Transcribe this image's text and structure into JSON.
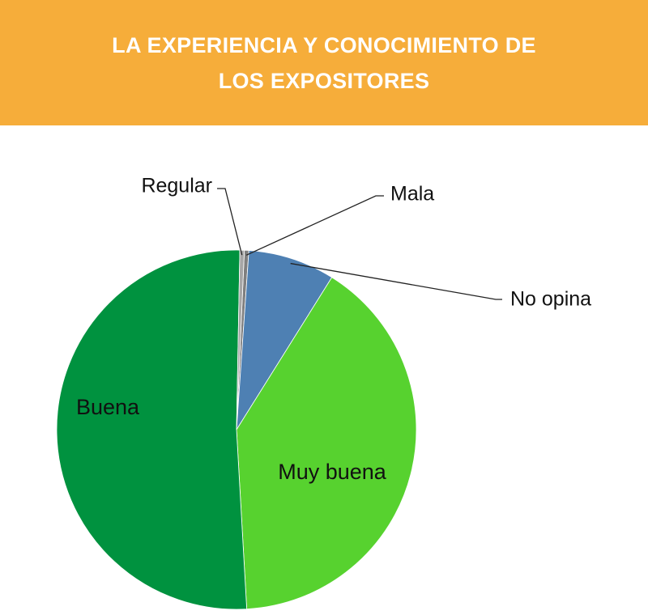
{
  "header": {
    "title_line1": "LA EXPERIENCIA Y CONOCIMIENTO DE",
    "title_line2": "LOS EXPOSITORES",
    "background_color": "#f6ad3a"
  },
  "chart_data": {
    "type": "pie",
    "title": "LA EXPERIENCIA Y CONOCIMIENTO DE LOS EXPOSITORES",
    "start_angle_deg": 2.5,
    "direction": "clockwise",
    "slices": [
      {
        "label": "Mala",
        "value": 0.4,
        "color": "#7f7f7f"
      },
      {
        "label": "No opina",
        "value": 7.8,
        "color": "#4e80b3"
      },
      {
        "label": "Muy buena",
        "value": 40.2,
        "color": "#57d22f"
      },
      {
        "label": "Buena",
        "value": 51.2,
        "color": "#00923f"
      },
      {
        "label": "Regular",
        "value": 0.4,
        "color": "#a6a6a6"
      }
    ]
  }
}
